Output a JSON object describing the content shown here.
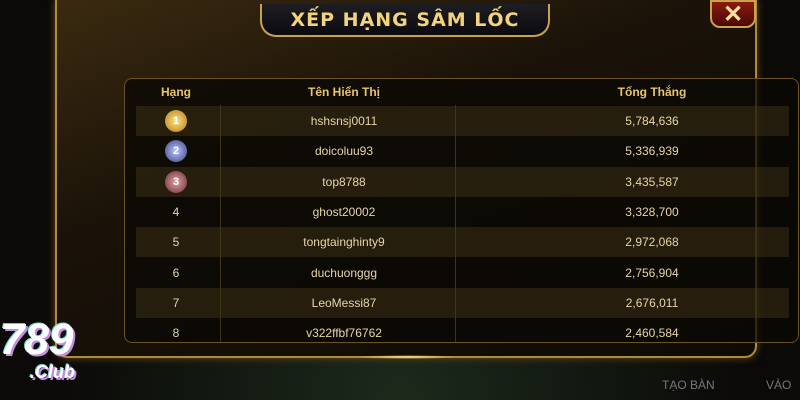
{
  "title": "XẾP HẠNG SÂM LỐC",
  "close_icon": "close-icon",
  "columns": {
    "rank": "Hạng",
    "name": "Tên Hiển Thị",
    "total": "Tổng Thắng"
  },
  "rows": [
    {
      "rank": "1",
      "name": "hshsnsj0011",
      "total": "5,784,636",
      "medal": "gold"
    },
    {
      "rank": "2",
      "name": "doicoluu93",
      "total": "5,336,939",
      "medal": "silver"
    },
    {
      "rank": "3",
      "name": "top8788",
      "total": "3,435,587",
      "medal": "bronze"
    },
    {
      "rank": "4",
      "name": "ghost20002",
      "total": "3,328,700"
    },
    {
      "rank": "5",
      "name": "tongtainghinty9",
      "total": "2,972,068"
    },
    {
      "rank": "6",
      "name": "duchuonggg",
      "total": "2,756,904"
    },
    {
      "rank": "7",
      "name": "LeoMessi87",
      "total": "2,676,011"
    },
    {
      "rank": "8",
      "name": "v322ffbf76762",
      "total": "2,460,584"
    }
  ],
  "bottom": {
    "create_table": "TẠO BÀN",
    "join": "VÀO"
  },
  "logo": {
    "number": "789",
    "suffix": ".Club"
  },
  "colors": {
    "gold": "#f3d47c",
    "border": "#c9a24a"
  }
}
